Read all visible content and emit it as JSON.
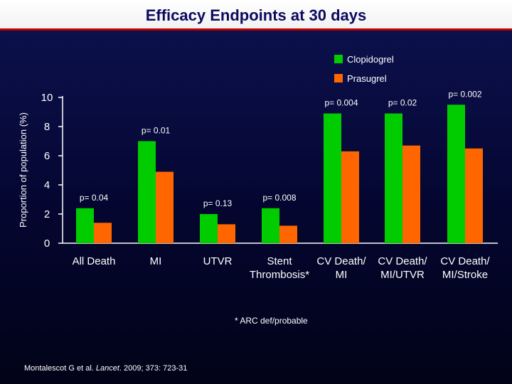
{
  "title": "Efficacy Endpoints at 30 days",
  "chart_data": {
    "type": "bar",
    "ylabel": "Proportion of population (%)",
    "ylim": [
      0,
      10
    ],
    "yticks": [
      0,
      2,
      4,
      6,
      8,
      10
    ],
    "categories": [
      [
        "All Death"
      ],
      [
        "MI"
      ],
      [
        "UTVR"
      ],
      [
        "Stent",
        "Thrombosis*"
      ],
      [
        "CV Death/",
        "MI"
      ],
      [
        "CV Death/",
        "MI/UTVR"
      ],
      [
        "CV Death/",
        "MI/Stroke"
      ]
    ],
    "series": [
      {
        "name": "Clopidogrel",
        "color": "#00cc00",
        "values": [
          2.4,
          7.0,
          2.0,
          2.4,
          8.9,
          8.9,
          9.5
        ]
      },
      {
        "name": "Prasugrel",
        "color": "#ff6600",
        "values": [
          1.4,
          4.9,
          1.3,
          1.2,
          6.3,
          6.7,
          6.5
        ]
      }
    ],
    "pvalues": [
      "p= 0.04",
      "p= 0.01",
      "p= 0.13",
      "p= 0.008",
      "p= 0.004",
      "p= 0.02",
      "p= 0.002"
    ],
    "legend_position": "top-right"
  },
  "footnote": "* ARC def/probable",
  "citation": {
    "prefix": "Montalescot G et al. ",
    "journal": "Lancet",
    "suffix": ". 2009; 373: 723-31"
  }
}
